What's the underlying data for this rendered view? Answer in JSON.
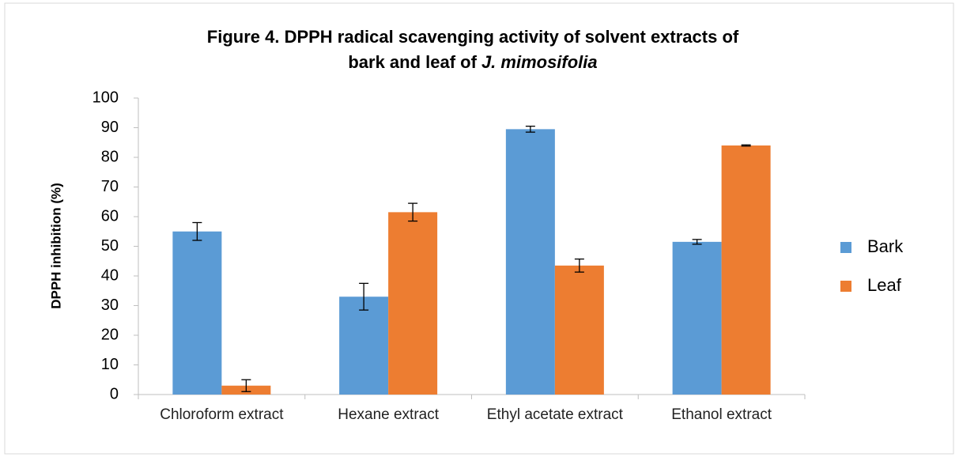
{
  "chart_data": {
    "type": "bar",
    "title": [
      "Figure 4. DPPH radical scavenging activity of solvent extracts of",
      "bark and leaf of",
      "J. mimosifolia"
    ],
    "ylabel": "DPPH inhibition (%)",
    "categories": [
      "Chloroform extract",
      "Hexane extract",
      "Ethyl acetate extract",
      "Ethanol extract"
    ],
    "series": [
      {
        "name": "Bark",
        "color": "#5b9bd5",
        "values": [
          55,
          33,
          89.5,
          51.5
        ],
        "errors": [
          3,
          4.5,
          1,
          0.8
        ]
      },
      {
        "name": "Leaf",
        "color": "#ed7d31",
        "values": [
          3,
          61.5,
          43.5,
          84
        ],
        "errors": [
          2,
          3,
          2.2,
          0.2
        ]
      }
    ],
    "ylim": [
      0,
      100
    ],
    "yticks": [
      0,
      10,
      20,
      30,
      40,
      50,
      60,
      70,
      80,
      90,
      100
    ],
    "grid": false,
    "legend": "right"
  }
}
